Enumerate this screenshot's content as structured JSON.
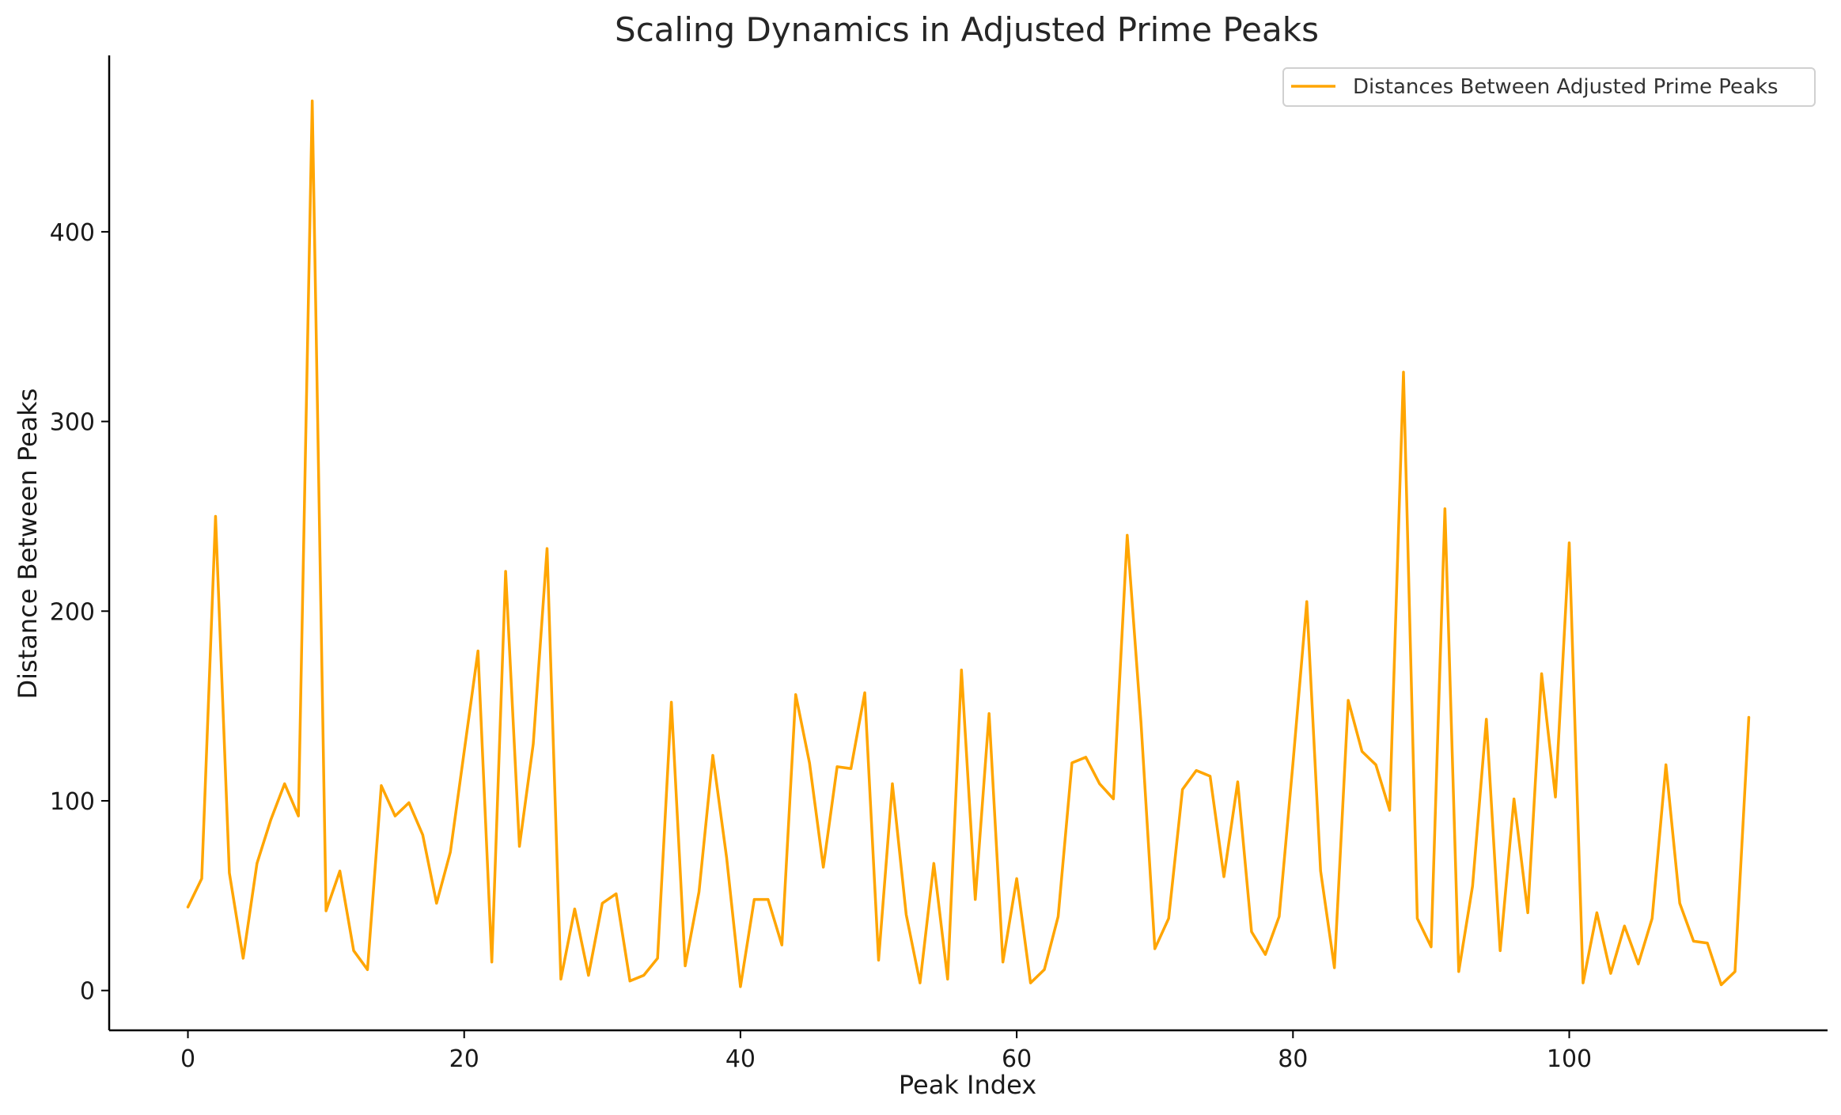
{
  "chart_data": {
    "type": "line",
    "title": "Scaling Dynamics in Adjusted Prime Peaks",
    "xlabel": "Peak Index",
    "ylabel": "Distance Between Peaks",
    "xlim": [
      -5.7,
      118.7
    ],
    "ylim": [
      -21,
      493
    ],
    "xticks": [
      0,
      20,
      40,
      60,
      80,
      100
    ],
    "yticks": [
      0,
      100,
      200,
      300,
      400
    ],
    "grid": false,
    "legend_position": "top-right",
    "series": [
      {
        "name": "Distances Between Adjusted Prime Peaks",
        "color": "#ffa500",
        "values": [
          44,
          59,
          250,
          62,
          17,
          67,
          90,
          109,
          92,
          469,
          42,
          63,
          21,
          11,
          108,
          92,
          99,
          82,
          46,
          73,
          126,
          179,
          15,
          221,
          76,
          130,
          233,
          6,
          43,
          8,
          46,
          51,
          5,
          8,
          17,
          152,
          13,
          52,
          124,
          70,
          2,
          48,
          48,
          24,
          156,
          120,
          65,
          118,
          117,
          157,
          16,
          109,
          40,
          4,
          67,
          6,
          169,
          48,
          146,
          15,
          59,
          4,
          11,
          39,
          120,
          123,
          109,
          101,
          240,
          141,
          22,
          38,
          106,
          116,
          113,
          60,
          110,
          31,
          19,
          39,
          120,
          205,
          63,
          12,
          153,
          126,
          119,
          95,
          326,
          38,
          23,
          254,
          10,
          55,
          143,
          21,
          101,
          41,
          167,
          102,
          236,
          4,
          41,
          9,
          34,
          14,
          38,
          119,
          46,
          26,
          25,
          3,
          10,
          144
        ]
      }
    ]
  }
}
